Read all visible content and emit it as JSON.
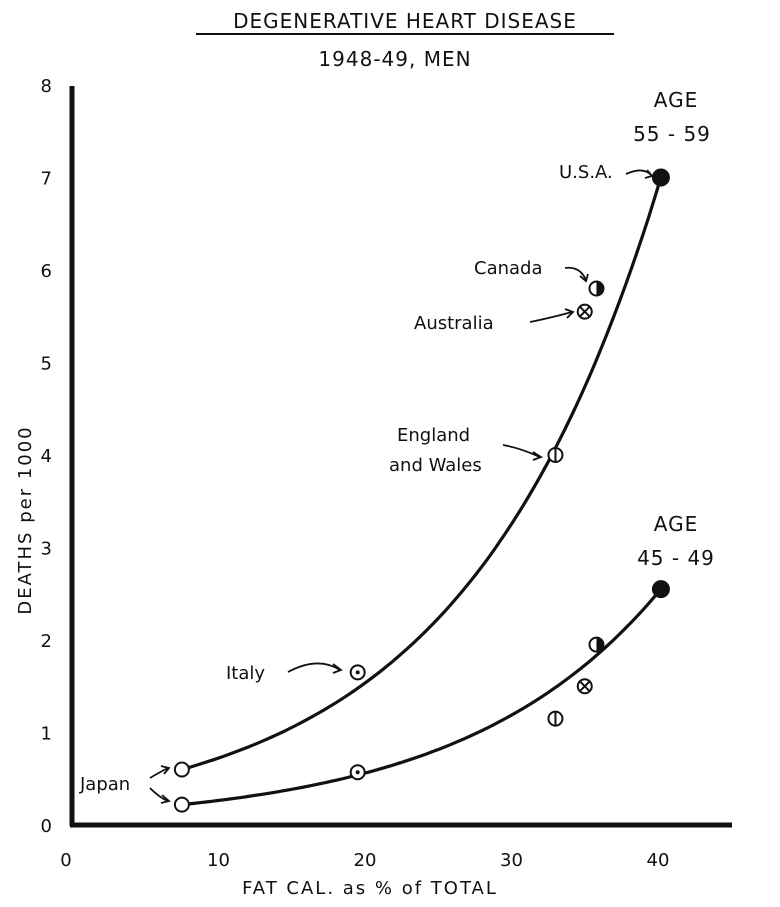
{
  "chart_data": {
    "type": "scatter",
    "title": "DEGENERATIVE HEART DISEASE",
    "subtitle": "1948-49, MEN",
    "xlabel": "FAT CAL. as % of TOTAL",
    "ylabel": "DEATHS per 1000",
    "xlim": [
      0,
      45
    ],
    "ylim": [
      0,
      8
    ],
    "x_ticks": [
      "0",
      "10",
      "20",
      "30",
      "40"
    ],
    "y_ticks": [
      "0",
      "1",
      "2",
      "3",
      "4",
      "5",
      "6",
      "7",
      "8"
    ],
    "grid": false,
    "series": [
      {
        "name": "AGE 55-59",
        "label_lines": [
          "AGE",
          "55 - 59"
        ],
        "points": [
          {
            "country": "Japan",
            "x": 7.5,
            "y": 0.6,
            "marker": "open"
          },
          {
            "country": "Italy",
            "x": 19.5,
            "y": 1.65,
            "marker": "dot"
          },
          {
            "country": "England and Wales",
            "x": 33.0,
            "y": 4.0,
            "marker": "vbar"
          },
          {
            "country": "Australia",
            "x": 35.0,
            "y": 5.55,
            "marker": "cross"
          },
          {
            "country": "Canada",
            "x": 35.8,
            "y": 5.8,
            "marker": "half"
          },
          {
            "country": "U.S.A.",
            "x": 40.2,
            "y": 7.0,
            "marker": "filled"
          }
        ]
      },
      {
        "name": "AGE 45-49",
        "label_lines": [
          "AGE",
          "45 - 49"
        ],
        "points": [
          {
            "country": "Japan",
            "x": 7.5,
            "y": 0.22,
            "marker": "open"
          },
          {
            "country": "Italy",
            "x": 19.5,
            "y": 0.57,
            "marker": "dot"
          },
          {
            "country": "England and Wales",
            "x": 33.0,
            "y": 1.15,
            "marker": "vbar"
          },
          {
            "country": "Australia",
            "x": 35.0,
            "y": 1.5,
            "marker": "cross"
          },
          {
            "country": "Canada",
            "x": 35.8,
            "y": 1.95,
            "marker": "half"
          },
          {
            "country": "U.S.A.",
            "x": 40.2,
            "y": 2.55,
            "marker": "filled"
          }
        ]
      }
    ],
    "annotations": {
      "usa": "U.S.A.",
      "canada": "Canada",
      "australia": "Australia",
      "england_1": "England",
      "england_2": "and Wales",
      "italy": "Italy",
      "japan": "Japan"
    }
  }
}
